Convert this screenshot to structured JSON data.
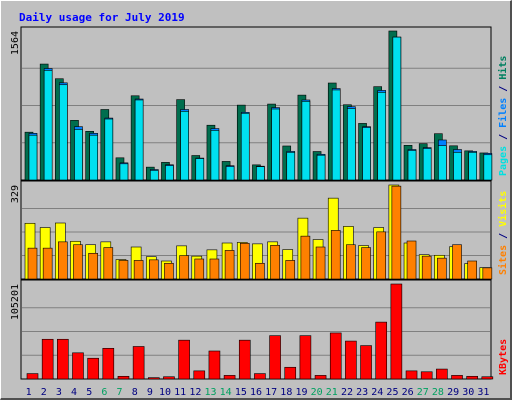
{
  "chart_data": {
    "type": "bar",
    "title": "Daily usage for July 2019",
    "categories": [
      "1",
      "2",
      "3",
      "4",
      "5",
      "6",
      "7",
      "8",
      "9",
      "10",
      "11",
      "12",
      "13",
      "14",
      "15",
      "16",
      "17",
      "18",
      "19",
      "20",
      "21",
      "22",
      "23",
      "24",
      "25",
      "26",
      "27",
      "28",
      "29",
      "30",
      "31"
    ],
    "weekend_days": [
      "6",
      "7",
      "13",
      "14",
      "20",
      "21",
      "27",
      "28"
    ],
    "grid": true,
    "panels": [
      {
        "ymax_label": "1564",
        "ylim": [
          0,
          1564
        ],
        "right_label_parts": [
          {
            "text": "Pages",
            "color": "#00e0e0"
          },
          {
            "text": " / ",
            "color": "#000080"
          },
          {
            "text": "Files",
            "color": "#0080ff"
          },
          {
            "text": " / ",
            "color": "#000080"
          },
          {
            "text": "Hits",
            "color": "#008060"
          }
        ],
        "series": [
          {
            "name": "Hits",
            "color": "#006e4e",
            "values": [
              502,
              1217,
              1063,
              626,
              511,
              740,
              233,
              884,
              135,
              185,
              844,
              257,
              575,
              195,
              786,
              159,
              797,
              357,
              891,
              299,
              1018,
              790,
              594,
              980,
              1564,
              364,
              381,
              486,
              359,
              306,
              284
            ]
          },
          {
            "name": "Files",
            "color": "#0080ff",
            "values": [
              490,
              1170,
              1020,
              560,
              490,
              650,
              180,
              850,
              110,
              160,
              740,
              230,
              540,
              150,
              710,
              145,
              760,
              300,
              840,
              270,
              960,
              770,
              560,
              940,
              1500,
              320,
              340,
              420,
              320,
              300,
              280
            ]
          },
          {
            "name": "Pages",
            "color": "#00e0f0",
            "values": [
              470,
              1150,
              1000,
              530,
              470,
              640,
              170,
              840,
              100,
              150,
              720,
              225,
              520,
              140,
              700,
              140,
              745,
              290,
              825,
              260,
              945,
              750,
              550,
              920,
              1500,
              310,
              330,
              360,
              290,
              290,
              265
            ]
          }
        ]
      },
      {
        "ymax_label": "329",
        "ylim": [
          0,
          329
        ],
        "right_label_parts": [
          {
            "text": "Sites",
            "color": "#ff8000"
          },
          {
            "text": " / ",
            "color": "#000080"
          },
          {
            "text": "Visits",
            "color": "#ffff00"
          }
        ],
        "series": [
          {
            "name": "Visits",
            "color": "#ffff00",
            "values": [
              195,
              180,
              196,
              132,
              120,
              130,
              68,
              112,
              78,
              63,
              116,
              80,
              102,
              126,
              128,
              123,
              130,
              103,
              213,
              138,
              283,
              184,
              117,
              180,
              329,
              126,
              85,
              83,
              113,
              54,
              40
            ]
          },
          {
            "name": "Sites",
            "color": "#ff8000",
            "values": [
              108,
              108,
              130,
              120,
              90,
              110,
              65,
              65,
              67,
              55,
              82,
              70,
              70,
              100,
              125,
              55,
              118,
              65,
              150,
              112,
              170,
              120,
              110,
              165,
              325,
              133,
              80,
              73,
              120,
              63,
              39
            ]
          }
        ]
      },
      {
        "ymax_label": "105201",
        "ylim": [
          0,
          105201
        ],
        "right_label_parts": [
          {
            "text": "KBytes",
            "color": "#ff0000"
          }
        ],
        "series": [
          {
            "name": "KBytes",
            "color": "#ff0000",
            "values": [
              6000,
              44000,
              44000,
              29000,
              23000,
              34000,
              3000,
              36000,
              1500,
              2500,
              43000,
              9000,
              31000,
              4000,
              43000,
              6000,
              48000,
              13000,
              48000,
              4000,
              51000,
              42000,
              37000,
              63000,
              105201,
              9000,
              8000,
              11000,
              4000,
              3000,
              2500
            ]
          }
        ]
      }
    ]
  }
}
